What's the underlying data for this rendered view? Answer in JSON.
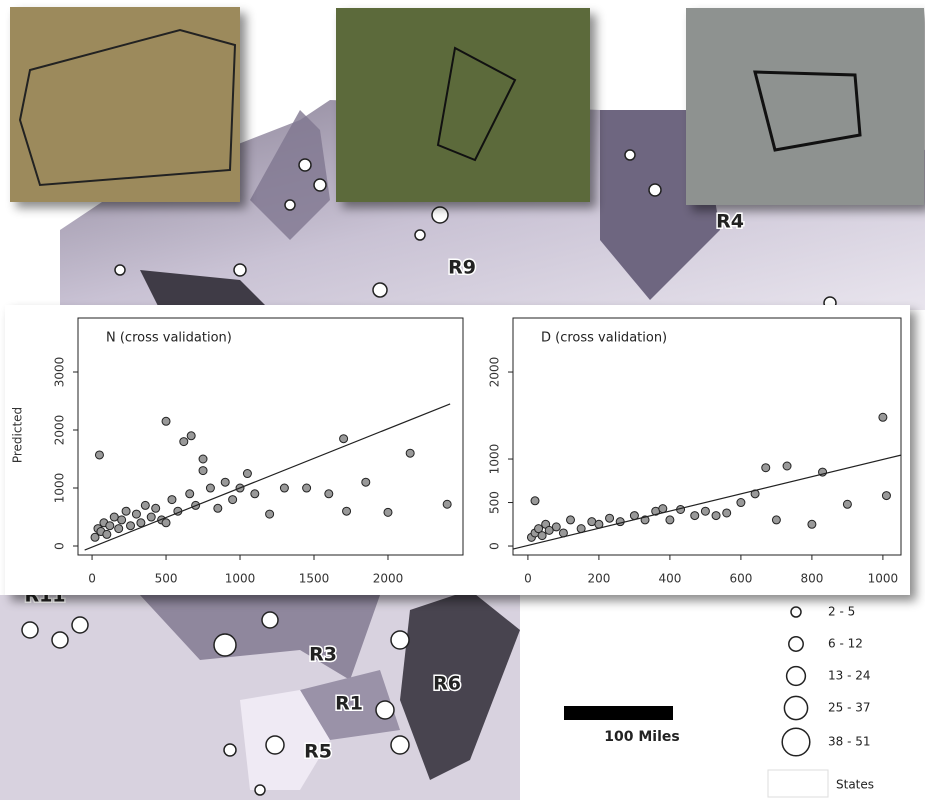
{
  "map": {
    "regions": [
      "R4",
      "R9",
      "R11",
      "R3",
      "R1",
      "R6",
      "R5"
    ],
    "legend": {
      "entries": [
        "2 - 5",
        "6 - 12",
        "13 - 24",
        "25 - 37",
        "38 - 51"
      ],
      "states": "States"
    },
    "scale": "100 Miles"
  },
  "chart_data": [
    {
      "type": "scatter",
      "title": "N (cross validation)",
      "ylabel": "Predicted",
      "x": [
        20,
        40,
        60,
        80,
        100,
        120,
        150,
        180,
        200,
        230,
        260,
        300,
        330,
        360,
        400,
        430,
        470,
        500,
        540,
        580,
        620,
        660,
        700,
        750,
        800,
        850,
        900,
        950,
        1000,
        1050,
        1100,
        1200,
        1300,
        1450,
        1600,
        1700,
        1720,
        1850,
        2000,
        2150,
        2400,
        50,
        500,
        670,
        750
      ],
      "values": [
        150,
        300,
        250,
        400,
        200,
        350,
        500,
        300,
        450,
        600,
        350,
        550,
        400,
        700,
        500,
        650,
        450,
        2150,
        800,
        600,
        1800,
        900,
        700,
        1500,
        1000,
        650,
        1100,
        800,
        1000,
        1250,
        900,
        550,
        1000,
        1000,
        900,
        1850,
        600,
        1100,
        580,
        1600,
        720,
        1570,
        400,
        1900,
        1300
      ],
      "color": "#999999",
      "fit": {
        "x": [
          -50,
          2420
        ],
        "values": [
          -70,
          2450
        ]
      },
      "xlim": [
        -95,
        2507
      ],
      "ylim": [
        -155,
        3931
      ],
      "xticks": [
        0,
        500,
        1000,
        1500,
        2000
      ],
      "yticks": [
        0,
        1000,
        2000,
        3000
      ]
    },
    {
      "type": "scatter",
      "title": "D (cross validation)",
      "x": [
        10,
        20,
        30,
        40,
        50,
        60,
        80,
        100,
        120,
        150,
        180,
        200,
        230,
        260,
        300,
        330,
        360,
        400,
        430,
        470,
        500,
        530,
        560,
        600,
        640,
        670,
        700,
        730,
        800,
        830,
        900,
        1000,
        1010,
        20,
        380
      ],
      "values": [
        100,
        150,
        200,
        120,
        250,
        180,
        220,
        150,
        300,
        200,
        280,
        250,
        320,
        280,
        350,
        300,
        400,
        300,
        420,
        350,
        400,
        350,
        380,
        500,
        600,
        900,
        300,
        920,
        250,
        850,
        480,
        1480,
        580,
        520,
        430
      ],
      "color": "#999999",
      "fit": {
        "x": [
          -42,
          1051
        ],
        "values": [
          -35,
          1045
        ]
      },
      "xlim": [
        -42,
        1051
      ],
      "ylim": [
        -103,
        2621
      ],
      "xticks": [
        0,
        200,
        400,
        600,
        800,
        1000
      ],
      "yticks": [
        0,
        500,
        1000,
        2000
      ]
    }
  ]
}
